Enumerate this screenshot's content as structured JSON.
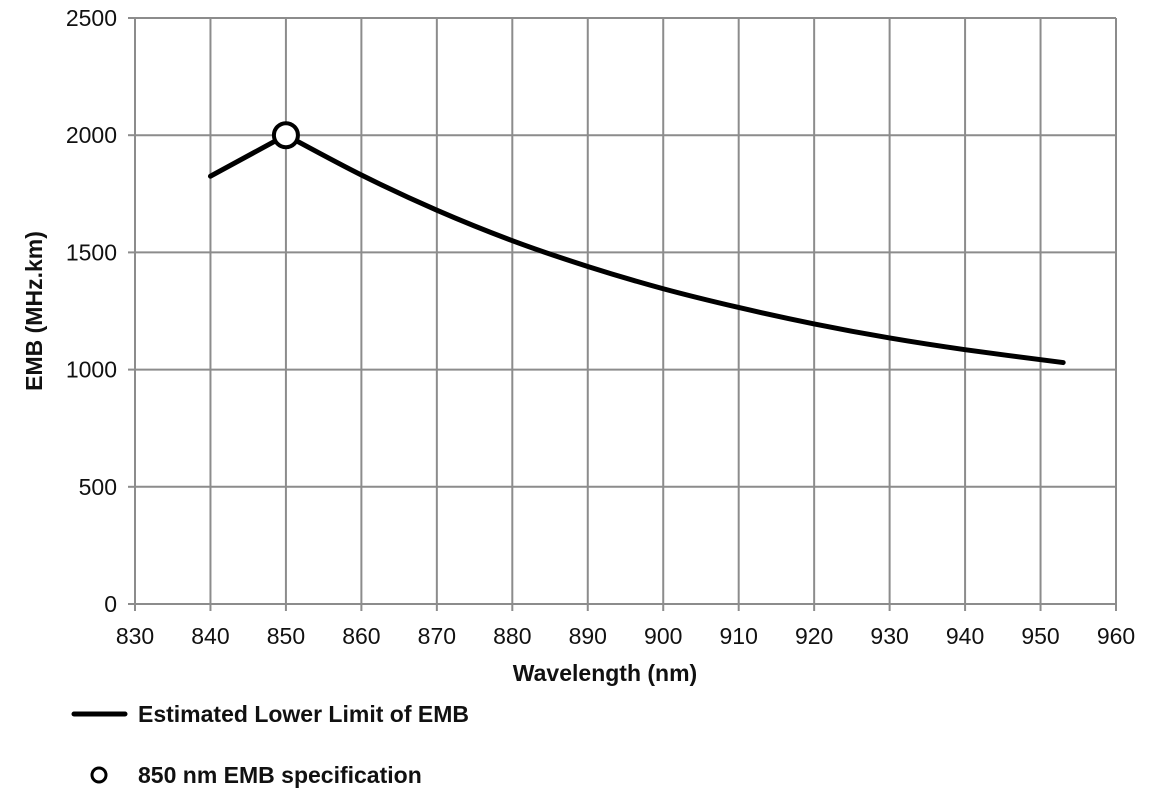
{
  "chart_data": {
    "type": "line",
    "title": "",
    "xlabel": "Wavelength (nm)",
    "ylabel": "EMB (MHz.km)",
    "xlim": [
      830,
      960
    ],
    "ylim": [
      0,
      2500
    ],
    "x_ticks": [
      830,
      840,
      850,
      860,
      870,
      880,
      890,
      900,
      910,
      920,
      930,
      940,
      950,
      960
    ],
    "y_ticks": [
      0,
      500,
      1000,
      1500,
      2000,
      2500
    ],
    "grid": true,
    "legend_position": "bottom-left",
    "series": [
      {
        "name": "Estimated Lower Limit of EMB",
        "kind": "line",
        "color": "#000000",
        "x": [
          840,
          850,
          860,
          870,
          880,
          890,
          900,
          910,
          920,
          930,
          940,
          953
        ],
        "y": [
          1825,
          2000,
          1830,
          1680,
          1550,
          1440,
          1345,
          1265,
          1195,
          1135,
          1085,
          1030
        ]
      },
      {
        "name": "850 nm EMB specification",
        "kind": "marker",
        "marker": "open-circle",
        "color": "#000000",
        "x": [
          850
        ],
        "y": [
          2000
        ]
      }
    ]
  }
}
